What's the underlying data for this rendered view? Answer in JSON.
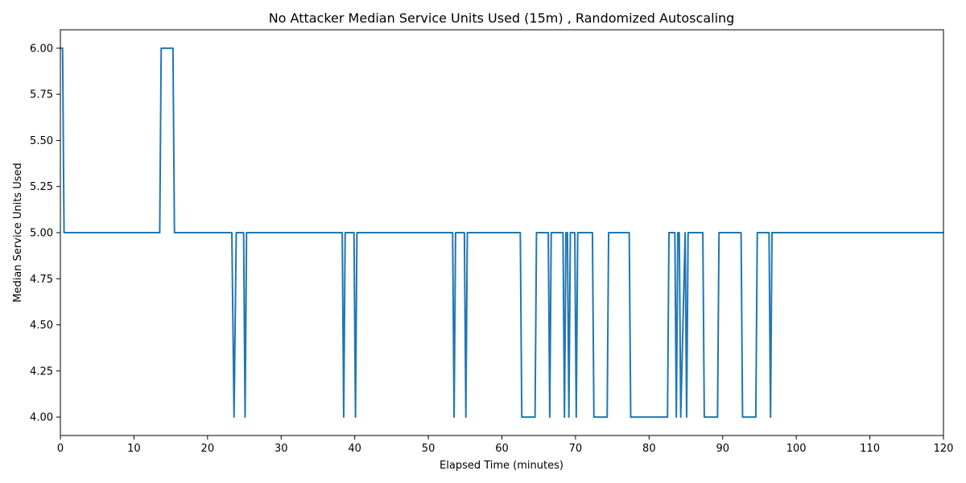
{
  "chart_data": {
    "type": "line",
    "title": "No Attacker Median Service Units Used (15m) , Randomized Autoscaling",
    "xlabel": "Elapsed Time (minutes)",
    "ylabel": "Median Service Units Used",
    "xlim": [
      0,
      120
    ],
    "ylim": [
      3.9,
      6.1
    ],
    "xticks": [
      0,
      10,
      20,
      30,
      40,
      50,
      60,
      70,
      80,
      90,
      100,
      110,
      120
    ],
    "xtick_labels": [
      "0",
      "10",
      "20",
      "30",
      "40",
      "50",
      "60",
      "70",
      "80",
      "90",
      "100",
      "110",
      "120"
    ],
    "yticks": [
      4.0,
      4.25,
      4.5,
      4.75,
      5.0,
      5.25,
      5.5,
      5.75,
      6.0
    ],
    "ytick_labels": [
      "4.00",
      "4.25",
      "4.50",
      "4.75",
      "5.00",
      "5.25",
      "5.50",
      "5.75",
      "6.00"
    ],
    "grid": false,
    "line_color": "#1f77b4",
    "series": [
      {
        "x": [
          0,
          0.3,
          0.5,
          13.5,
          13.7,
          15.3,
          15.5,
          23.3,
          23.6,
          23.9,
          24.9,
          25.1,
          25.3,
          38.3,
          38.5,
          38.7,
          39.9,
          40.1,
          40.3,
          53.3,
          53.5,
          53.7,
          54.9,
          55.1,
          55.3,
          62.5,
          62.7,
          64.5,
          64.7,
          66.3,
          66.5,
          66.7,
          68.3,
          68.5,
          68.7,
          68.9,
          69.1,
          69.3,
          69.9,
          70.1,
          70.3,
          72.3,
          72.5,
          74.3,
          74.5,
          77.3,
          77.5,
          82.5,
          82.7,
          83.5,
          83.7,
          83.9,
          84.1,
          84.3,
          84.9,
          85.1,
          85.3,
          87.3,
          87.5,
          89.3,
          89.5,
          92.5,
          92.7,
          94.5,
          94.7,
          96.3,
          96.5,
          96.7,
          120
        ],
        "values": [
          6,
          6,
          5,
          5,
          6,
          6,
          5,
          5,
          4,
          5,
          5,
          4,
          5,
          5,
          4,
          5,
          5,
          4,
          5,
          5,
          4,
          5,
          5,
          4,
          5,
          5,
          4,
          4,
          5,
          5,
          4,
          5,
          5,
          4,
          5,
          5,
          4,
          5,
          5,
          4,
          5,
          5,
          4,
          4,
          5,
          5,
          4,
          4,
          5,
          5,
          4,
          5,
          5,
          4,
          5,
          4,
          5,
          5,
          4,
          4,
          5,
          5,
          4,
          4,
          5,
          5,
          4,
          5,
          5
        ]
      }
    ]
  }
}
